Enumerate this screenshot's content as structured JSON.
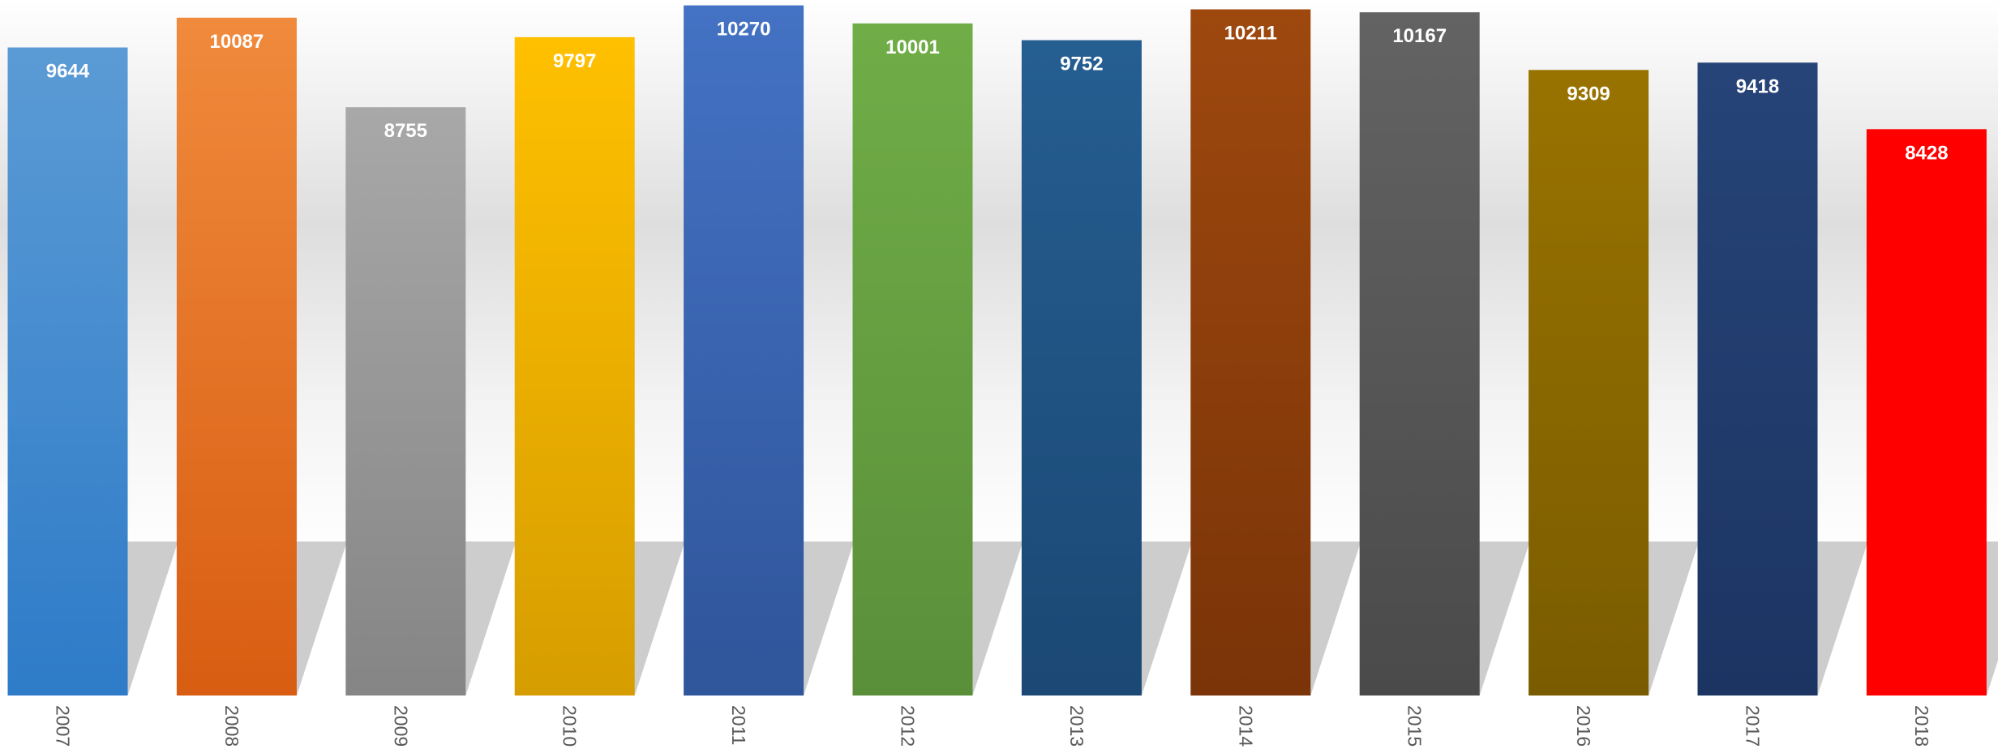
{
  "chart_data": {
    "type": "bar",
    "categories": [
      "2007",
      "2008",
      "2009",
      "2010",
      "2011",
      "2012",
      "2013",
      "2014",
      "2015",
      "2016",
      "2017",
      "2018"
    ],
    "values": [
      9644,
      10087,
      8755,
      9797,
      10270,
      10001,
      9752,
      10211,
      10167,
      9309,
      9418,
      8428
    ],
    "data_labels": [
      "9644",
      "10087",
      "8755",
      "9797",
      "10270",
      "10001",
      "9752",
      "10211",
      "10167",
      "9309",
      "9418",
      "8428"
    ],
    "colors": [
      [
        "#5b9bd5",
        "#2e7bc8"
      ],
      [
        "#f08a3c",
        "#d85d12"
      ],
      [
        "#a8a8a8",
        "#858585"
      ],
      [
        "#ffc000",
        "#d69d00"
      ],
      [
        "#4472c4",
        "#2f559a"
      ],
      [
        "#70ad47",
        "#5a8f3a"
      ],
      [
        "#255e91",
        "#1b4874"
      ],
      [
        "#9e480e",
        "#7a3408"
      ],
      [
        "#636363",
        "#4a4a4a"
      ],
      [
        "#997300",
        "#7a5c00"
      ],
      [
        "#264478",
        "#1c3462"
      ],
      [
        "#ff0000",
        "#ff0000"
      ]
    ],
    "title": "",
    "xlabel": "",
    "ylabel": "",
    "ylim": [
      0,
      10350
    ],
    "grid": false,
    "legend": "none"
  }
}
